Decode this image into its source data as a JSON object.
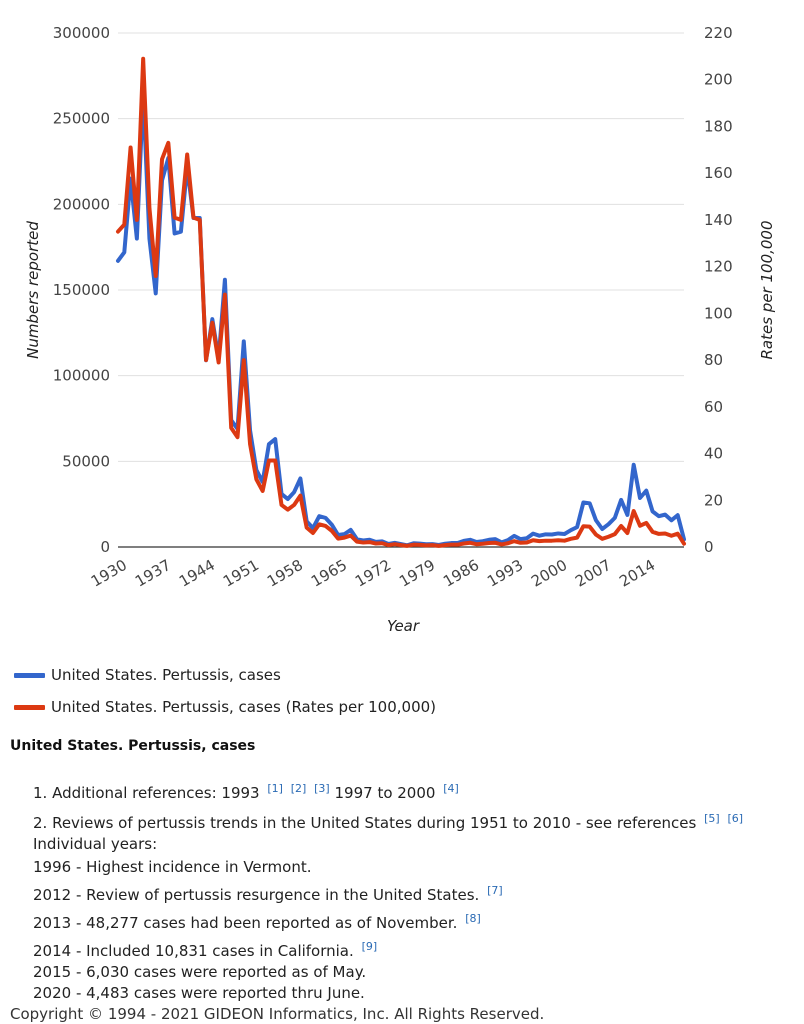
{
  "chart_data": {
    "type": "line",
    "xlabel": "Year",
    "ylabel_left": "Numbers reported",
    "ylabel_right": "Rates per 100,000",
    "ylim_left": [
      0,
      300000
    ],
    "ylim_right": [
      0,
      220
    ],
    "x_ticks": [
      "1930",
      "1937",
      "1944",
      "1951",
      "1958",
      "1965",
      "1972",
      "1979",
      "1986",
      "1993",
      "2000",
      "2007",
      "2014"
    ],
    "y_ticks_left": [
      "0",
      "50000",
      "100000",
      "150000",
      "200000",
      "250000",
      "300000"
    ],
    "y_ticks_right": [
      "0",
      "20",
      "40",
      "60",
      "80",
      "100",
      "120",
      "140",
      "160",
      "180",
      "200",
      "220"
    ],
    "grid": true,
    "legend_position": "bottom",
    "x": [
      1930,
      1931,
      1932,
      1933,
      1934,
      1935,
      1936,
      1937,
      1938,
      1939,
      1940,
      1941,
      1942,
      1943,
      1944,
      1945,
      1946,
      1947,
      1948,
      1949,
      1950,
      1951,
      1952,
      1953,
      1954,
      1955,
      1956,
      1957,
      1958,
      1959,
      1960,
      1961,
      1962,
      1963,
      1964,
      1965,
      1966,
      1967,
      1968,
      1969,
      1970,
      1971,
      1972,
      1973,
      1974,
      1975,
      1976,
      1977,
      1978,
      1979,
      1980,
      1981,
      1982,
      1983,
      1984,
      1985,
      1986,
      1987,
      1988,
      1989,
      1990,
      1991,
      1992,
      1993,
      1994,
      1995,
      1996,
      1997,
      1998,
      1999,
      2000,
      2001,
      2002,
      2003,
      2004,
      2005,
      2006,
      2007,
      2008,
      2009,
      2010,
      2011,
      2012,
      2013,
      2014,
      2015,
      2016,
      2017,
      2018,
      2019,
      2020
    ],
    "series": [
      {
        "name": "United States. Pertussis, cases",
        "axis": "left",
        "color": "#3366cc",
        "values": [
          167000,
          172000,
          215000,
          180000,
          265000,
          180000,
          148000,
          214000,
          227000,
          183000,
          184000,
          222000,
          192000,
          192000,
          109000,
          133000,
          110000,
          156000,
          74000,
          69000,
          120000,
          68000,
          45000,
          38000,
          60000,
          63000,
          31000,
          28000,
          32000,
          40000,
          15000,
          11000,
          18000,
          17000,
          13000,
          7000,
          7500,
          10000,
          4500,
          3800,
          4200,
          3000,
          3300,
          1800,
          2400,
          1700,
          1000,
          2200,
          2000,
          1600,
          1700,
          1200,
          1900,
          2300,
          2300,
          3600,
          4200,
          2900,
          3400,
          4200,
          4600,
          2700,
          4000,
          6500,
          4600,
          5100,
          7800,
          6600,
          7400,
          7300,
          7900,
          7600,
          9800,
          11600,
          26000,
          25500,
          15600,
          10500,
          13300,
          17000,
          27500,
          18700,
          48000,
          28600,
          32900,
          20800,
          18000,
          18900,
          15600,
          18600,
          4500
        ]
      },
      {
        "name": "United States. Pertussis, cases (Rates per 100,000)",
        "axis": "right",
        "color": "#dc3912",
        "values": [
          135,
          138,
          171,
          140,
          209,
          145,
          116,
          166,
          173,
          141,
          140,
          168,
          141,
          140,
          80,
          96,
          79,
          108,
          51,
          47,
          80,
          44,
          29,
          24,
          37,
          37,
          18,
          16,
          18,
          22,
          8.3,
          6,
          9.7,
          9,
          6.9,
          3.6,
          4,
          4.9,
          2.3,
          1.9,
          2.1,
          1.5,
          1.6,
          0.8,
          1.2,
          0.8,
          0.5,
          1,
          0.9,
          0.7,
          0.8,
          0.5,
          0.8,
          1,
          1,
          1.5,
          1.8,
          1.2,
          1.4,
          1.7,
          1.8,
          1.1,
          1.6,
          2.5,
          1.8,
          1.9,
          2.9,
          2.5,
          2.7,
          2.7,
          2.9,
          2.7,
          3.5,
          4,
          8.9,
          8.7,
          5.3,
          3.5,
          4.4,
          5.5,
          9,
          6,
          15.4,
          9.1,
          10.3,
          6.5,
          5.6,
          5.8,
          4.8,
          5.7,
          1.4
        ]
      }
    ]
  },
  "notes": {
    "title": "United States. Pertussis, cases",
    "line1_text": "1. Additional references: 1993",
    "line1_refs_a": [
      "[1]",
      "[2]",
      "[3]"
    ],
    "line1_mid": "1997 to 2000",
    "line1_refs_b": [
      "[4]"
    ],
    "line2_text": "2. Reviews of pertussis trends in the United States during 1951 to 2010 - see references",
    "line2_refs": [
      "[5]",
      "[6]"
    ],
    "individual_years": "Individual years:",
    "y1996": "1996 - Highest incidence in Vermont.",
    "y2012": "2012 - Review of pertussis resurgence in the United States.",
    "y2012_ref": "[7]",
    "y2013": "2013 - 48,277 cases had been reported as of November.",
    "y2013_ref": "[8]",
    "y2014": "2014 - Included 10,831 cases in California.",
    "y2014_ref": "[9]",
    "y2015": "2015 - 6,030 cases were reported as of May.",
    "y2020": "2020 - 4,483 cases were reported thru June.",
    "copyright": "Copyright © 1994 - 2021 GIDEON Informatics, Inc. All Rights Reserved."
  }
}
